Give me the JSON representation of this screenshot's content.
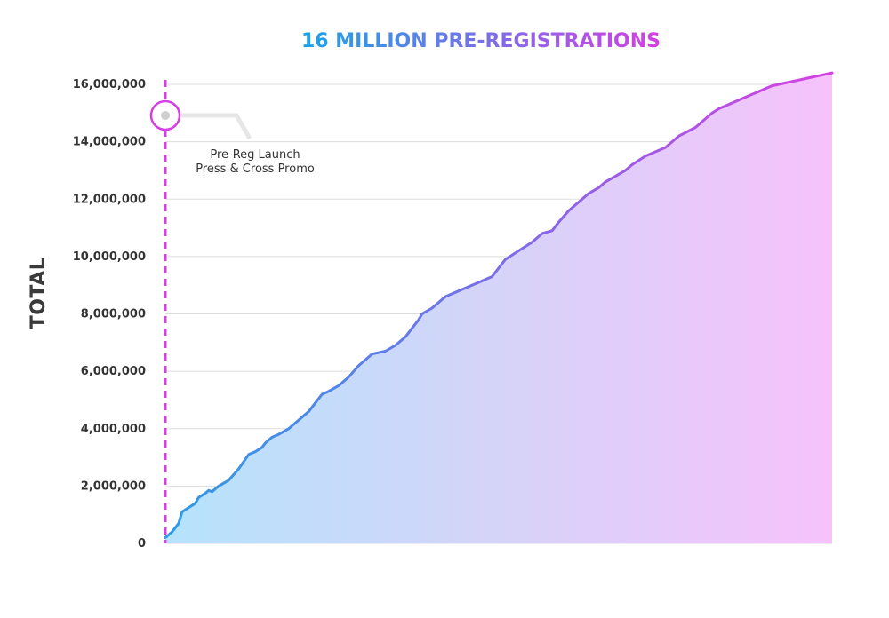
{
  "chart_data": {
    "type": "area",
    "title": "16  MILLION PRE-REGISTRATIONS",
    "ylabel": "TOTAL",
    "ylim": [
      0,
      16000000
    ],
    "yticks": [
      0,
      2000000,
      4000000,
      6000000,
      8000000,
      10000000,
      12000000,
      14000000,
      16000000
    ],
    "ytick_labels": [
      "0",
      "2,000,000",
      "4,000,000",
      "6,000,000",
      "8,000,000",
      "10,000,000",
      "12,000,000",
      "14,000,000",
      "16,000,000"
    ],
    "grid": true,
    "xlim": [
      0,
      100
    ],
    "series": [
      {
        "x": [
          0,
          1,
          2,
          2.5,
          3.5,
          4.5,
          5,
          6,
          6.5,
          7,
          8,
          9.5,
          11,
          12.5,
          13.5,
          14.5,
          15,
          16,
          17,
          18.5,
          20,
          21.5,
          22.5,
          23.5,
          24.5,
          26,
          27.5,
          29,
          31,
          33,
          34.5,
          36,
          38,
          38.5,
          40,
          42,
          44,
          47,
          49,
          51,
          53,
          55,
          56.5,
          58,
          59,
          60.5,
          62,
          63.5,
          65,
          66,
          67.5,
          69,
          70,
          72,
          75,
          77,
          79.5,
          81,
          82,
          83,
          84,
          85,
          86,
          87,
          88,
          89,
          90,
          91,
          92,
          93,
          94,
          95,
          96,
          97,
          98,
          99,
          100
        ],
        "values": [
          200000,
          400000,
          700000,
          1100000,
          1250000,
          1400000,
          1600000,
          1750000,
          1850000,
          1800000,
          2000000,
          2200000,
          2600000,
          3100000,
          3200000,
          3350000,
          3500000,
          3700000,
          3800000,
          4000000,
          4300000,
          4600000,
          4900000,
          5200000,
          5300000,
          5500000,
          5800000,
          6200000,
          6600000,
          6700000,
          6900000,
          7200000,
          7800000,
          8000000,
          8200000,
          8600000,
          8800000,
          9100000,
          9300000,
          9900000,
          10200000,
          10500000,
          10800000,
          10900000,
          11200000,
          11600000,
          11900000,
          12200000,
          12400000,
          12600000,
          12800000,
          13000000,
          13200000,
          13500000,
          13800000,
          14200000,
          14500000,
          14800000,
          15000000,
          15150000,
          15250000,
          15350000,
          15450000,
          15550000,
          15650000,
          15750000,
          15850000,
          15950000,
          16000000,
          16050000,
          16100000,
          16150000,
          16200000,
          16250000,
          16300000,
          16350000,
          16400000
        ]
      }
    ],
    "annotation": {
      "text_line1": "Pre-Reg Launch",
      "text_line2": "Press & Cross Promo",
      "x": 0
    },
    "colors": {
      "line_start": "#2d9be6",
      "line_mid": "#7b6de8",
      "line_end": "#d63fe3",
      "fill_start": "#b5e3fb",
      "fill_mid": "#d5d3f8",
      "fill_end": "#f6c2fb",
      "marker": "#d63fe3",
      "title_start": "#1aa3e8",
      "title_end": "#d63fe3",
      "grid": "#dddddd",
      "connector": "#e6e6e6"
    }
  }
}
